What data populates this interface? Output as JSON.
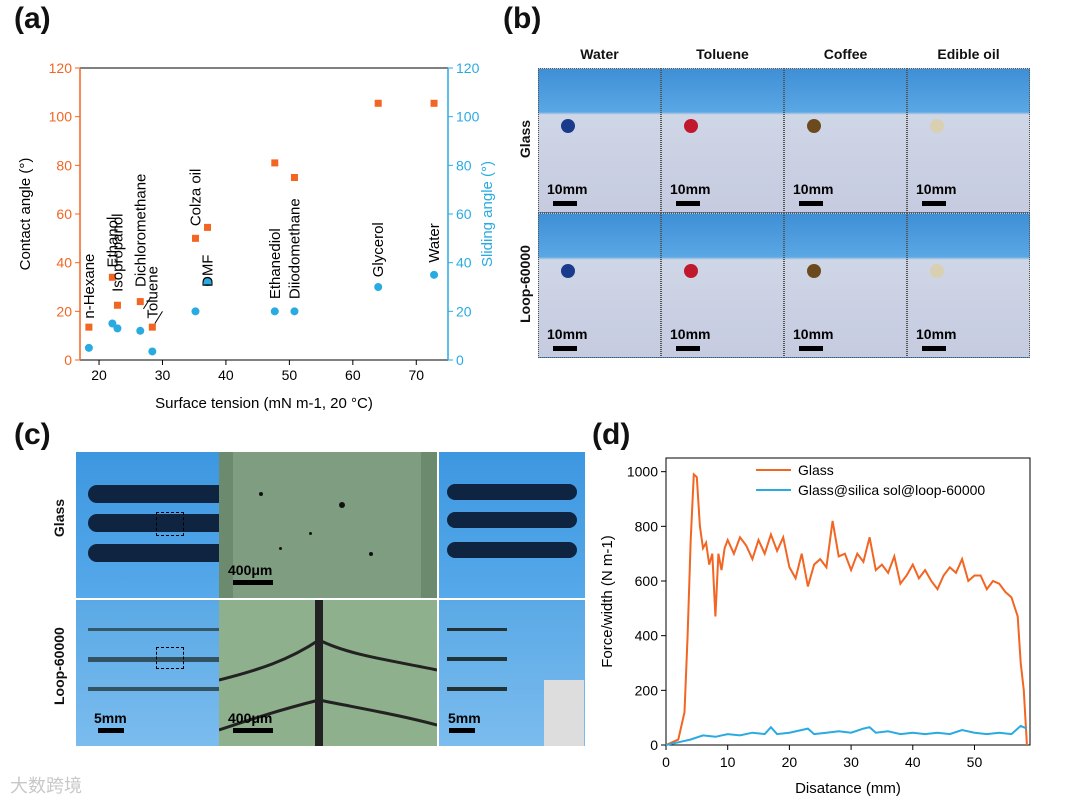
{
  "panels": {
    "a": "(a)",
    "b": "(b)",
    "c": "(c)",
    "d": "(d)"
  },
  "colors": {
    "orange": "#f26522",
    "blue": "#29abe2",
    "photo_blue": "#4a9de0",
    "photo_sky": "#5aaee6"
  },
  "watermark": "大数跨境",
  "chart_data": [
    {
      "id": "a",
      "type": "scatter",
      "xlabel": "Surface tension (mN m-1, 20 °C)",
      "ylabel": "Contact angle (°)",
      "y2label": "Sliding angle (°)",
      "xlim": [
        17,
        75
      ],
      "ylim": [
        0,
        120
      ],
      "y2lim": [
        0,
        120
      ],
      "xticks": [
        20,
        30,
        40,
        50,
        60,
        70
      ],
      "yticks": [
        0,
        20,
        40,
        60,
        80,
        100,
        120
      ],
      "series": [
        {
          "name": "Contact angle",
          "axis": "left",
          "points": [
            [
              18.4,
              13.5
            ],
            [
              22.1,
              34
            ],
            [
              22.9,
              22.5
            ],
            [
              26.5,
              24
            ],
            [
              28.4,
              13.5
            ],
            [
              35.2,
              50
            ],
            [
              37.1,
              54.5
            ],
            [
              47.7,
              81
            ],
            [
              50.8,
              75
            ],
            [
              64.0,
              105.5
            ],
            [
              72.8,
              105.5
            ]
          ]
        },
        {
          "name": "Sliding angle",
          "axis": "right",
          "points": [
            [
              18.4,
              5
            ],
            [
              22.1,
              15
            ],
            [
              22.9,
              13
            ],
            [
              26.5,
              12
            ],
            [
              28.4,
              3.5
            ],
            [
              35.2,
              20
            ],
            [
              37.1,
              32
            ],
            [
              47.7,
              20
            ],
            [
              50.8,
              20
            ],
            [
              64.0,
              30
            ],
            [
              72.8,
              35
            ]
          ]
        }
      ],
      "annotations": [
        "n-Hexane",
        "Ethanol",
        "Isopropanol",
        "Dichloromethane",
        "Toluene",
        "Colza oil",
        "DMF",
        "Ethanediol",
        "Diiodomethane",
        "Glycerol",
        "Water"
      ]
    },
    {
      "id": "d",
      "type": "line",
      "xlabel": "Disatance (mm)",
      "ylabel": "Force/width (N m-1)",
      "xlim": [
        0,
        59
      ],
      "ylim": [
        0,
        1050
      ],
      "xticks": [
        0,
        10,
        20,
        30,
        40,
        50
      ],
      "yticks": [
        0,
        200,
        400,
        600,
        800,
        1000
      ],
      "series": [
        {
          "name": "Glass",
          "color": "orange",
          "x": [
            0,
            2,
            3,
            3.5,
            4,
            4.5,
            5,
            5.5,
            6,
            6.5,
            7,
            7.5,
            8,
            8.5,
            9,
            9.5,
            10,
            11,
            12,
            13,
            14,
            15,
            16,
            17,
            18,
            19,
            20,
            21,
            22,
            23,
            24,
            25,
            26,
            27,
            28,
            29,
            30,
            31,
            32,
            33,
            34,
            35,
            36,
            37,
            38,
            39,
            40,
            41,
            42,
            43,
            44,
            45,
            46,
            47,
            48,
            49,
            50,
            51,
            52,
            53,
            54,
            55,
            56,
            57,
            57.5,
            58,
            58.5
          ],
          "values": [
            0,
            20,
            120,
            400,
            750,
            990,
            980,
            800,
            720,
            740,
            660,
            700,
            470,
            700,
            640,
            720,
            750,
            700,
            760,
            730,
            680,
            750,
            700,
            770,
            710,
            760,
            650,
            610,
            700,
            580,
            660,
            680,
            650,
            820,
            690,
            700,
            640,
            700,
            670,
            760,
            640,
            660,
            630,
            690,
            590,
            620,
            660,
            610,
            640,
            600,
            570,
            620,
            650,
            630,
            680,
            600,
            620,
            620,
            570,
            600,
            590,
            560,
            540,
            470,
            300,
            200,
            0
          ]
        },
        {
          "name": "Glass@silica sol@loop-60000",
          "color": "blue",
          "x": [
            0,
            2,
            4,
            6,
            8,
            10,
            12,
            14,
            16,
            17,
            18,
            20,
            22,
            23,
            24,
            26,
            28,
            30,
            32,
            33,
            34,
            36,
            38,
            40,
            42,
            44,
            46,
            48,
            50,
            52,
            54,
            56,
            57.5,
            58.5
          ],
          "values": [
            0,
            10,
            20,
            35,
            30,
            40,
            35,
            45,
            40,
            65,
            40,
            45,
            55,
            60,
            40,
            45,
            50,
            45,
            60,
            65,
            45,
            50,
            40,
            45,
            40,
            45,
            40,
            55,
            45,
            40,
            45,
            40,
            70,
            60
          ]
        }
      ]
    }
  ],
  "panel_b": {
    "columns": [
      "Water",
      "Toluene",
      "Coffee",
      "Edible oil"
    ],
    "rows": [
      "Glass",
      "Loop-60000"
    ],
    "scale": "10mm"
  },
  "panel_c": {
    "rows": [
      "Glass",
      "Loop-60000"
    ],
    "scale_left": "5mm",
    "scale_mid": "400μm",
    "scale_right": "5mm"
  }
}
